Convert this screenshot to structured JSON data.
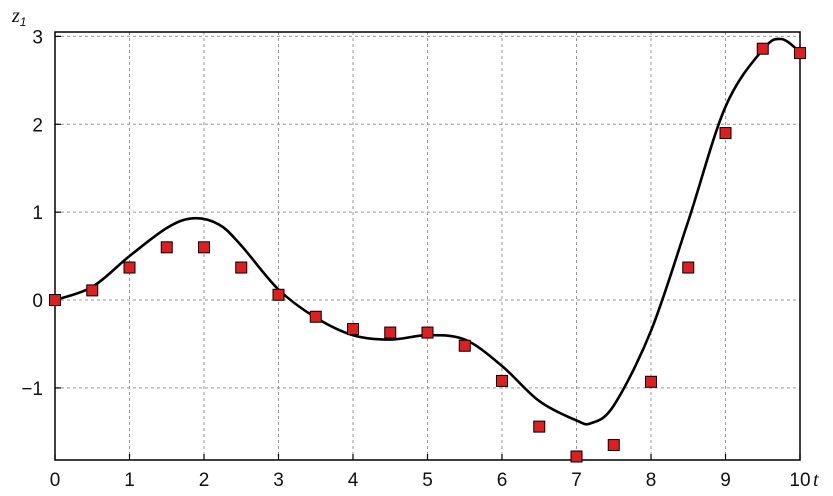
{
  "chart_data": {
    "type": "scatter",
    "xlabel": "t",
    "ylabel": {
      "base": "z",
      "subscript": "1"
    },
    "xlim": [
      0,
      10
    ],
    "ylim": [
      -1.82,
      3.05
    ],
    "xticks": [
      0,
      1,
      2,
      3,
      4,
      5,
      6,
      7,
      8,
      9,
      10
    ],
    "yticks": [
      -1,
      0,
      1,
      2,
      3
    ],
    "ytick_labels": [
      "−1",
      "0",
      "1",
      "2",
      "3"
    ],
    "grid": true,
    "grid_style": "dashed",
    "series": [
      {
        "type": "line",
        "color": "#000000",
        "x": [
          0,
          0.5,
          1,
          1.5,
          1.85,
          2.2,
          2.5,
          3,
          3.5,
          4,
          4.5,
          5,
          5.5,
          6,
          6.5,
          7,
          7.2,
          7.5,
          8,
          8.5,
          9,
          9.5,
          9.75,
          10
        ],
        "y": [
          0,
          0.15,
          0.5,
          0.82,
          0.93,
          0.86,
          0.62,
          0.12,
          -0.2,
          -0.4,
          -0.45,
          -0.4,
          -0.45,
          -0.75,
          -1.15,
          -1.37,
          -1.4,
          -1.2,
          -0.35,
          0.9,
          2.2,
          2.85,
          2.97,
          2.82
        ]
      },
      {
        "type": "scatter",
        "marker": "square",
        "color": "#dd1f1f",
        "x": [
          0,
          0.5,
          1,
          1.5,
          2,
          2.5,
          3,
          3.5,
          4,
          4.5,
          5,
          5.5,
          6,
          6.5,
          7,
          7.5,
          8,
          8.5,
          9,
          9.5,
          10
        ],
        "y": [
          0,
          0.11,
          0.37,
          0.6,
          0.6,
          0.37,
          0.06,
          -0.19,
          -0.33,
          -0.37,
          -0.37,
          -0.52,
          -0.92,
          -1.44,
          -1.78,
          -1.65,
          -0.93,
          0.37,
          1.9,
          2.86,
          2.81
        ]
      }
    ]
  }
}
